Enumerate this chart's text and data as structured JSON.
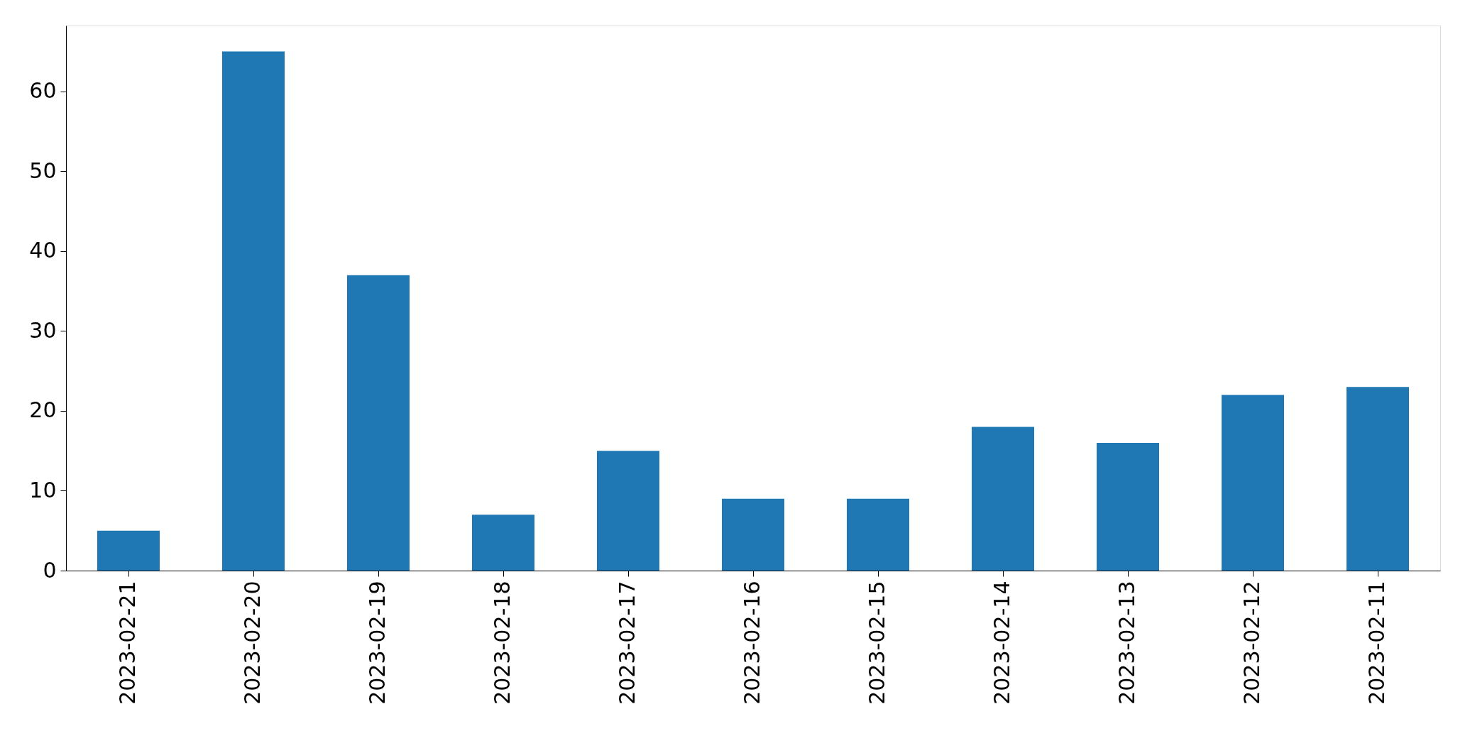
{
  "chart_data": {
    "type": "bar",
    "categories": [
      "2023-02-21",
      "2023-02-20",
      "2023-02-19",
      "2023-02-18",
      "2023-02-17",
      "2023-02-16",
      "2023-02-15",
      "2023-02-14",
      "2023-02-13",
      "2023-02-12",
      "2023-02-11"
    ],
    "values": [
      5,
      65,
      37,
      7,
      15,
      9,
      9,
      18,
      16,
      22,
      23
    ],
    "color": "#1f77b4",
    "ylim": [
      0,
      68.25
    ],
    "yticks": [
      0,
      10,
      20,
      30,
      40,
      50,
      60
    ],
    "grid": false
  }
}
